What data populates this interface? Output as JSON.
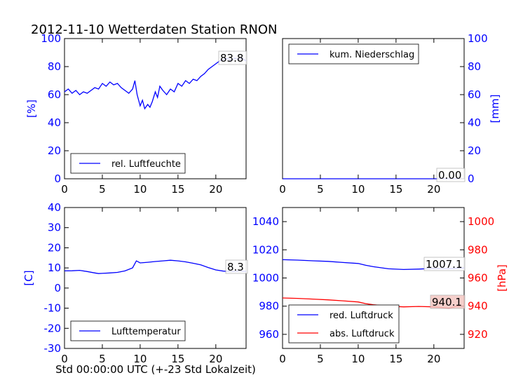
{
  "page": {
    "title": "2012-11-10 Wetterdaten Station RNON",
    "xlabel": "Std 00:00:00 UTC (+-23 Std Lokalzeit)"
  },
  "colors": {
    "blue": "#0000ff",
    "red": "#ff0000",
    "label_bg": "#f4c7c3"
  },
  "chart_data": [
    {
      "type": "line",
      "id": "humidity",
      "ylabel": "[%]",
      "xlim": [
        0,
        24
      ],
      "ylim": [
        0,
        100
      ],
      "xticks": [
        0,
        5,
        10,
        15,
        20
      ],
      "yticks": [
        0,
        20,
        40,
        60,
        80,
        100
      ],
      "legend": [
        "rel. Luftfeuchte"
      ],
      "legend_position": "lower-left",
      "last_value_label": "83.8",
      "series": [
        {
          "name": "rel. Luftfeuchte",
          "color": "#0000ff",
          "x": [
            0,
            0.5,
            1,
            1.5,
            2,
            2.5,
            3,
            3.5,
            4,
            4.5,
            5,
            5.5,
            6,
            6.5,
            7,
            7.5,
            8,
            8.5,
            9,
            9.3,
            9.6,
            10,
            10.3,
            10.6,
            11,
            11.3,
            11.6,
            12,
            12.3,
            12.6,
            13,
            13.5,
            14,
            14.5,
            15,
            15.5,
            16,
            16.5,
            17,
            17.5,
            18,
            18.5,
            19,
            19.5,
            20,
            20.5,
            21,
            21.5,
            22,
            22.5,
            23,
            23.5,
            24
          ],
          "y": [
            62,
            64,
            61,
            63,
            60,
            62,
            61,
            63,
            65,
            64,
            68,
            66,
            69,
            67,
            68,
            65,
            63,
            61,
            64,
            70,
            60,
            52,
            56,
            50,
            53,
            51,
            55,
            62,
            58,
            66,
            63,
            60,
            64,
            62,
            68,
            66,
            70,
            68,
            71,
            70,
            73,
            75,
            78,
            80,
            82,
            84,
            85,
            86,
            84,
            86,
            85,
            86,
            84
          ]
        }
      ]
    },
    {
      "type": "line",
      "id": "precip",
      "ylabel": "[mm]",
      "xlim": [
        0,
        24
      ],
      "ylim": [
        0,
        100
      ],
      "xticks": [
        0,
        5,
        10,
        15,
        20
      ],
      "yticks": [
        0,
        20,
        40,
        60,
        80,
        100
      ],
      "yaxis_side": "right",
      "legend": [
        "kum. Niederschlag"
      ],
      "legend_position": "upper-left",
      "last_value_label": "0.00",
      "series": [
        {
          "name": "kum. Niederschlag",
          "color": "#0000ff",
          "x": [
            0,
            24
          ],
          "y": [
            0,
            0
          ]
        }
      ]
    },
    {
      "type": "line",
      "id": "temperature",
      "ylabel": "[C]",
      "xlim": [
        0,
        24
      ],
      "ylim": [
        -30,
        40
      ],
      "xticks": [
        0,
        5,
        10,
        15,
        20
      ],
      "yticks": [
        -30,
        -20,
        -10,
        0,
        10,
        20,
        30,
        40
      ],
      "legend": [
        "Lufttemperatur"
      ],
      "legend_position": "lower-left",
      "last_value_label": "8.3",
      "series": [
        {
          "name": "Lufttemperatur",
          "color": "#0000ff",
          "x": [
            0,
            1,
            2,
            3,
            4,
            4.5,
            5,
            6,
            7,
            8,
            9,
            9.5,
            10,
            11,
            12,
            13,
            14,
            15,
            16,
            17,
            18,
            19,
            20,
            21,
            22,
            23,
            24
          ],
          "y": [
            8.5,
            8.6,
            8.8,
            8.2,
            7.5,
            7.2,
            7.3,
            7.5,
            7.8,
            8.5,
            10,
            13.5,
            12.5,
            12.8,
            13.2,
            13.5,
            13.8,
            13.5,
            13,
            12.3,
            11.5,
            10.2,
            9,
            8.4,
            8.2,
            8.3,
            8.3
          ]
        }
      ]
    },
    {
      "type": "line",
      "id": "pressure",
      "ylabel_right": "[hPa]",
      "xlim": [
        0,
        24
      ],
      "ylim_left": [
        950,
        1050
      ],
      "ylim_right": [
        910,
        1010
      ],
      "xticks": [
        0,
        5,
        10,
        15,
        20
      ],
      "yticks_left": [
        960,
        980,
        1000,
        1020,
        1040
      ],
      "yticks_right": [
        920,
        940,
        960,
        980,
        1000
      ],
      "legend": [
        "red. Luftdruck",
        "abs. Luftdruck"
      ],
      "legend_position": "lower-left",
      "last_value_labels": [
        "1007.1",
        "940.1"
      ],
      "series": [
        {
          "name": "red. Luftdruck",
          "color": "#0000ff",
          "axis": "left",
          "x": [
            0,
            2,
            4,
            6,
            8,
            10,
            11,
            12,
            14,
            16,
            18,
            20,
            22,
            24
          ],
          "y": [
            1013,
            1012.7,
            1012.2,
            1011.8,
            1011,
            1010.3,
            1009,
            1008,
            1006.5,
            1006,
            1006.3,
            1006.8,
            1006.6,
            1007.1
          ]
        },
        {
          "name": "abs. Luftdruck",
          "color": "#ff0000",
          "axis": "right",
          "x": [
            0,
            2,
            4,
            6,
            8,
            10,
            11,
            12,
            14,
            16,
            18,
            20,
            22,
            23,
            24
          ],
          "y": [
            945.8,
            945.5,
            945,
            944.5,
            943.8,
            943,
            941.8,
            941,
            940,
            939.5,
            939.8,
            939.5,
            938.5,
            940,
            940.1
          ]
        }
      ]
    }
  ]
}
